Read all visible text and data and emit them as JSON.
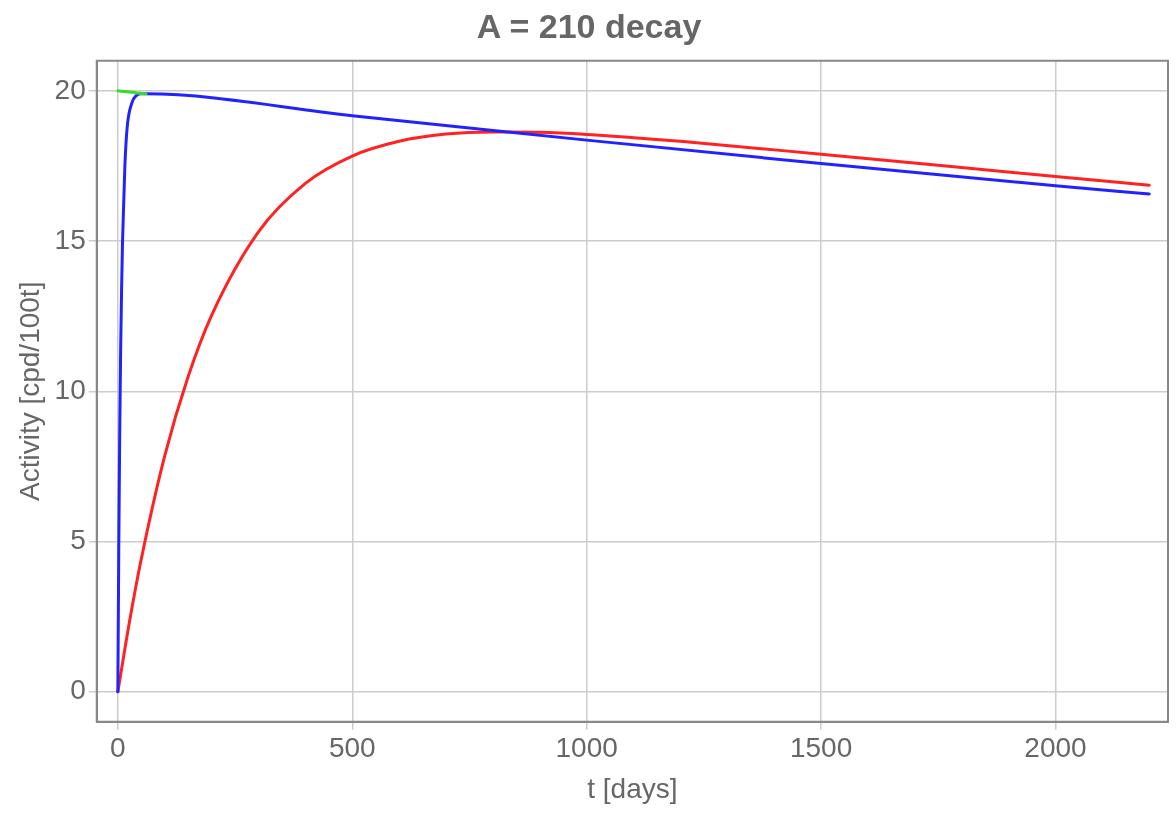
{
  "chart_data": {
    "type": "line",
    "title": "A = 210 decay",
    "xlabel": "t [days]",
    "ylabel": "Activity [cpd/100t]",
    "xlim": [
      -45,
      2240
    ],
    "ylim": [
      -1,
      21
    ],
    "xticks": [
      0,
      500,
      1000,
      1500,
      2000
    ],
    "yticks": [
      0,
      5,
      10,
      15,
      20
    ],
    "grid": true,
    "legend": false,
    "marker": "none",
    "line_style": "solid",
    "series": [
      {
        "color": "#33dd33",
        "x": [
          0,
          20,
          40,
          60
        ],
        "values": [
          20,
          19.97,
          19.93,
          19.9
        ]
      },
      {
        "color": "#2222ff",
        "x": [
          0,
          2,
          4,
          6,
          8,
          10,
          15,
          20,
          30,
          40,
          50,
          60,
          500,
          1000,
          1500,
          2000,
          2200
        ],
        "values": [
          0,
          4.8,
          8.6,
          11.4,
          13.4,
          15,
          17.5,
          18.8,
          19.6,
          19.85,
          19.9,
          19.9,
          19.17,
          18.36,
          17.58,
          16.84,
          16.57
        ]
      },
      {
        "color": "#ff2222",
        "x": [
          0,
          25,
          50,
          100,
          150,
          200,
          300,
          400,
          500,
          600,
          700,
          800,
          900,
          1000,
          1200,
          1500,
          2000,
          2200
        ],
        "values": [
          0,
          2.35,
          4.42,
          7.85,
          10.49,
          12.53,
          15.31,
          16.92,
          17.83,
          18.32,
          18.56,
          18.63,
          18.62,
          18.55,
          18.32,
          17.89,
          17.15,
          16.86
        ]
      }
    ]
  }
}
